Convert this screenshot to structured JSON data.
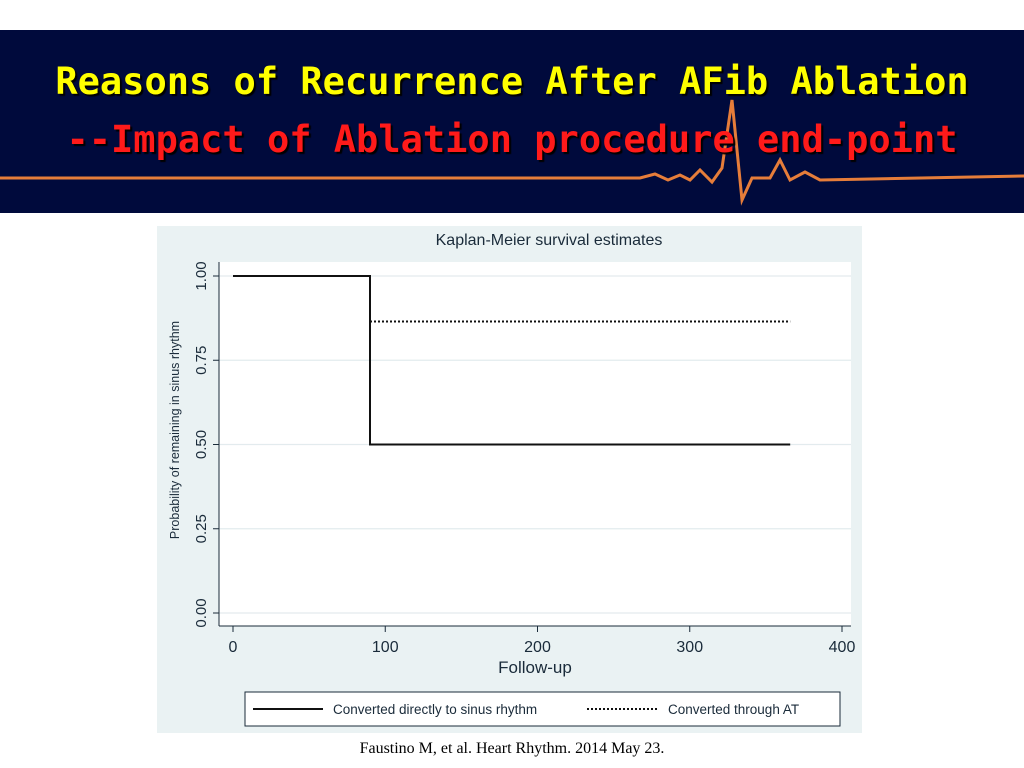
{
  "slide": {
    "title_line1": "Reasons of Recurrence After AFib Ablation",
    "title_line2": "--Impact of Ablation procedure end-point",
    "citation": "Faustino M, et al. Heart Rhythm. 2014 May 23.",
    "colors": {
      "banner_bg": "#000a3c",
      "title1": "#ffff00",
      "title2": "#ff1a1a",
      "ecg": "#ff8a3a",
      "plot_bg": "#eaf2f3"
    }
  },
  "chart_data": {
    "type": "line",
    "title": "Kaplan-Meier survival estimates",
    "xlabel": "Follow-up",
    "ylabel": "Probability of remaining in sinus rhythm",
    "xlim": [
      0,
      400
    ],
    "ylim": [
      0,
      1
    ],
    "xticks": [
      "0",
      "100",
      "200",
      "300",
      "400"
    ],
    "yticks": [
      "0.00",
      "0.25",
      "0.50",
      "0.75",
      "1.00"
    ],
    "grid": true,
    "legend_position": "bottom",
    "series": [
      {
        "name": "Converted directly to sinus rhythm",
        "style": "solid",
        "x": [
          0,
          90,
          90,
          366
        ],
        "y": [
          1.0,
          1.0,
          0.5,
          0.5
        ]
      },
      {
        "name": "Converted through AT",
        "style": "dotted",
        "x": [
          90,
          366
        ],
        "y": [
          0.865,
          0.865
        ]
      }
    ]
  }
}
